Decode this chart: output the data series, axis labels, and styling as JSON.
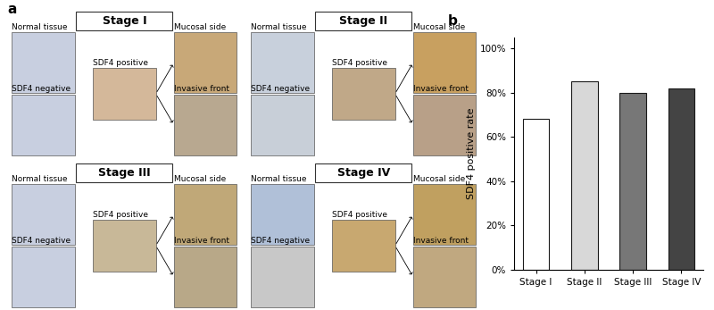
{
  "title_a": "a",
  "title_b": "b",
  "bar_categories": [
    "Stage I",
    "Stage II",
    "Stage III",
    "Stage IV"
  ],
  "bar_values": [
    68,
    85,
    80,
    82
  ],
  "bar_colors": [
    "#ffffff",
    "#d8d8d8",
    "#777777",
    "#444444"
  ],
  "bar_edgecolors": [
    "#1a1a1a",
    "#1a1a1a",
    "#1a1a1a",
    "#1a1a1a"
  ],
  "ylabel": "SDF4 positive rate",
  "yticks": [
    0,
    20,
    40,
    60,
    80,
    100
  ],
  "yticklabels": [
    "0%",
    "20%",
    "40%",
    "60%",
    "80%",
    "100%"
  ],
  "ylim": [
    0,
    105
  ],
  "bar_width": 0.55,
  "background_color": "#ffffff",
  "axis_label_fontsize": 8,
  "tick_fontsize": 7.5,
  "figure_label_fontsize": 11,
  "stage_label_fontsize": 9,
  "image_label_fontsize": 6.5,
  "stages_top": [
    "Stage I",
    "Stage II"
  ],
  "stages_bottom": [
    "Stage III",
    "Stage IV"
  ],
  "img_colors": {
    "normal_blue": "#c8cfe0",
    "sdf4_pos_top1": "#d4b89a",
    "sdf4_neg_blue": "#c8cfe0",
    "mucosal_brown": "#c8a878",
    "invasive_front": "#b8a890",
    "normal_blue2": "#c8d0dc",
    "sdf4_pos2": "#c0a888",
    "sdf4_neg2": "#c8cfd8",
    "mucosal2": "#c8a060",
    "invasive2": "#b8a088",
    "normal_blue3": "#c8cfe0",
    "sdf4_pos3": "#c8b898",
    "sdf4_neg3": "#c8cfe0",
    "mucosal3": "#c0a878",
    "invasive3": "#b8a888",
    "normal_blue4": "#b0c0d8",
    "sdf4_pos4": "#c8a870",
    "sdf4_neg4": "#c8c8c8",
    "mucosal4": "#c0a060",
    "invasive4": "#c0a880"
  }
}
